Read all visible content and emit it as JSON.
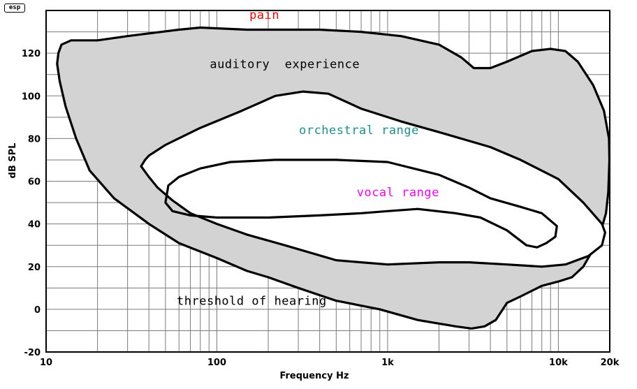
{
  "logo": {
    "text": "esp"
  },
  "chart_data": {
    "type": "area",
    "xlabel": "Frequency Hz",
    "ylabel": "dB SPL",
    "xscale": "log",
    "xlim": [
      10,
      20000
    ],
    "ylim": [
      -20,
      140
    ],
    "grid": true,
    "x_ticks": [
      {
        "value": 10,
        "label": "10"
      },
      {
        "value": 100,
        "label": "100"
      },
      {
        "value": 1000,
        "label": "1k"
      },
      {
        "value": 10000,
        "label": "10k"
      },
      {
        "value": 20000,
        "label": "20k"
      }
    ],
    "y_ticks": [
      {
        "value": -20,
        "label": "-20"
      },
      {
        "value": 0,
        "label": "0"
      },
      {
        "value": 20,
        "label": "20"
      },
      {
        "value": 40,
        "label": "40"
      },
      {
        "value": 60,
        "label": "60"
      },
      {
        "value": 80,
        "label": "80"
      },
      {
        "value": 100,
        "label": "100"
      },
      {
        "value": 120,
        "label": "120"
      }
    ],
    "annotations": [
      {
        "text": "pain",
        "x": 190,
        "y": 138,
        "color": "#ff0000",
        "spaced": true
      },
      {
        "text": "auditory  experience",
        "x": 250,
        "y": 115,
        "color": "#000000"
      },
      {
        "text": "orchestral range",
        "x": 680,
        "y": 84,
        "color": "#1a9090"
      },
      {
        "text": "vocal range",
        "x": 1150,
        "y": 55,
        "color": "#ff00ff"
      },
      {
        "text": "threshold of hearing",
        "x": 160,
        "y": 4,
        "color": "#000000"
      }
    ],
    "series": [
      {
        "fill": "#d3d3d3",
        "points": [
          [
            11.8,
            120
          ],
          [
            12.3,
            124
          ],
          [
            14,
            126
          ],
          [
            20,
            126
          ],
          [
            30,
            128
          ],
          [
            60,
            131
          ],
          [
            80,
            132
          ],
          [
            150,
            131
          ],
          [
            400,
            131
          ],
          [
            700,
            130
          ],
          [
            1200,
            128
          ],
          [
            2000,
            124
          ],
          [
            2700,
            118
          ],
          [
            3200,
            113
          ],
          [
            4000,
            113
          ],
          [
            5000,
            116
          ],
          [
            7000,
            121
          ],
          [
            9000,
            122
          ],
          [
            11000,
            121
          ],
          [
            13000,
            116
          ],
          [
            16000,
            105
          ],
          [
            18500,
            93
          ],
          [
            19800,
            80
          ],
          [
            19900,
            70
          ],
          [
            19600,
            55
          ],
          [
            19000,
            45
          ],
          [
            17500,
            35
          ],
          [
            16000,
            28
          ],
          [
            14000,
            20
          ],
          [
            12000,
            15
          ],
          [
            10000,
            13
          ],
          [
            8000,
            11
          ],
          [
            6000,
            6
          ],
          [
            5000,
            3
          ],
          [
            4300,
            -5
          ],
          [
            3700,
            -8
          ],
          [
            3100,
            -9
          ],
          [
            2500,
            -8
          ],
          [
            1500,
            -5
          ],
          [
            900,
            0
          ],
          [
            500,
            4
          ],
          [
            300,
            10
          ],
          [
            200,
            15
          ],
          [
            150,
            18
          ],
          [
            100,
            24
          ],
          [
            60,
            31
          ],
          [
            40,
            40
          ],
          [
            25,
            52
          ],
          [
            18,
            65
          ],
          [
            15,
            80
          ],
          [
            13,
            95
          ],
          [
            12,
            107
          ],
          [
            11.6,
            115
          ],
          [
            11.8,
            120
          ]
        ]
      },
      {
        "fill": "#ffffff",
        "points": [
          [
            38,
            70
          ],
          [
            40,
            72
          ],
          [
            50,
            77
          ],
          [
            80,
            85
          ],
          [
            140,
            93
          ],
          [
            220,
            100
          ],
          [
            320,
            102
          ],
          [
            450,
            101
          ],
          [
            700,
            94
          ],
          [
            1200,
            88
          ],
          [
            2000,
            83
          ],
          [
            4000,
            76
          ],
          [
            6000,
            70
          ],
          [
            10000,
            61
          ],
          [
            14000,
            50
          ],
          [
            18000,
            40
          ],
          [
            18800,
            36
          ],
          [
            18000,
            30
          ],
          [
            15000,
            25
          ],
          [
            11000,
            21
          ],
          [
            8000,
            20
          ],
          [
            5000,
            21
          ],
          [
            3000,
            22
          ],
          [
            2000,
            22
          ],
          [
            1000,
            21
          ],
          [
            700,
            22
          ],
          [
            500,
            23
          ],
          [
            250,
            30
          ],
          [
            150,
            35
          ],
          [
            100,
            40
          ],
          [
            70,
            45
          ],
          [
            55,
            51
          ],
          [
            45,
            57
          ],
          [
            40,
            62
          ],
          [
            36,
            67
          ],
          [
            38,
            70
          ]
        ]
      },
      {
        "fill": "none",
        "points": [
          [
            50,
            50
          ],
          [
            52,
            58
          ],
          [
            60,
            62
          ],
          [
            80,
            66
          ],
          [
            120,
            69
          ],
          [
            220,
            70
          ],
          [
            500,
            70
          ],
          [
            1000,
            69
          ],
          [
            2000,
            63
          ],
          [
            3000,
            57
          ],
          [
            4000,
            52
          ],
          [
            6000,
            48
          ],
          [
            8000,
            45
          ],
          [
            9800,
            39
          ],
          [
            9600,
            34
          ],
          [
            8500,
            31
          ],
          [
            7500,
            29
          ],
          [
            6500,
            30
          ],
          [
            5000,
            37
          ],
          [
            3500,
            43
          ],
          [
            2500,
            45
          ],
          [
            1500,
            47
          ],
          [
            1000,
            46
          ],
          [
            700,
            45
          ],
          [
            400,
            44
          ],
          [
            200,
            43
          ],
          [
            100,
            43
          ],
          [
            70,
            44
          ],
          [
            55,
            46
          ],
          [
            50,
            50
          ]
        ]
      }
    ]
  }
}
